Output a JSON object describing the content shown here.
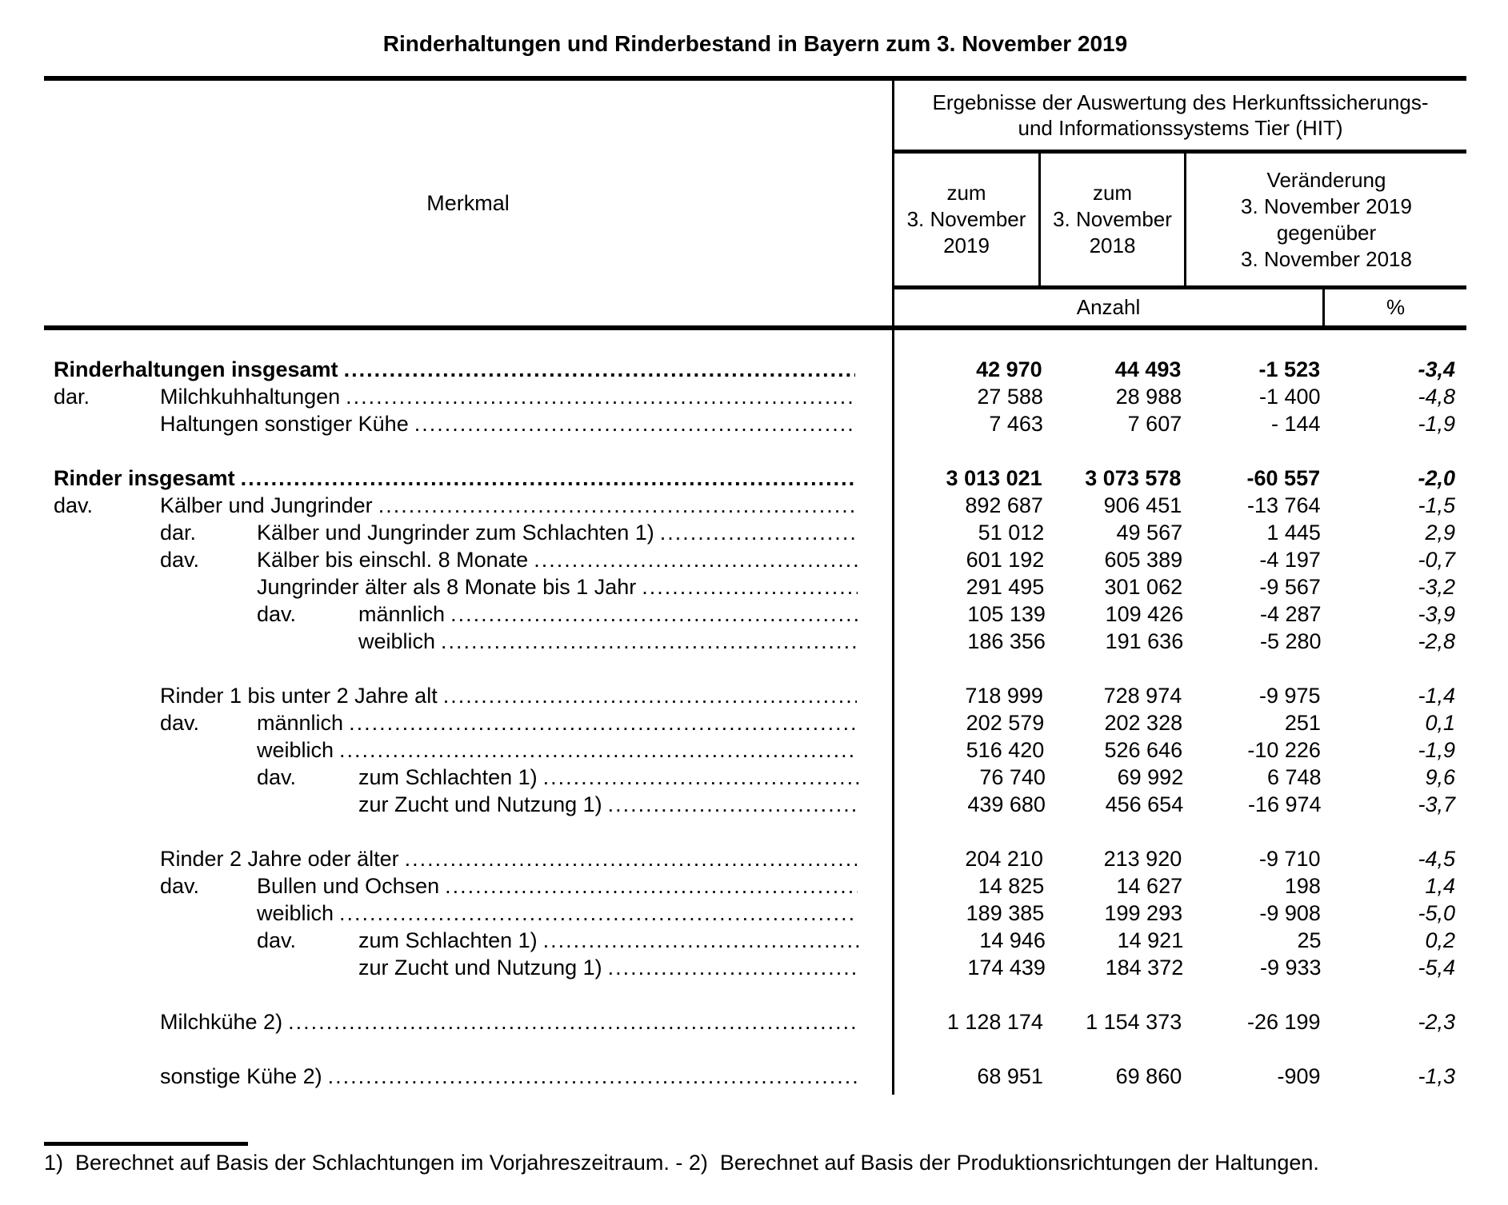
{
  "title": "Rinderhaltungen und Rinderbestand in Bayern zum 3. November 2019",
  "table": {
    "merkmal_label": "Merkmal",
    "hit_header": "Ergebnisse der Auswertung des Herkunftssicherungs-\nund Informationssystems Tier (HIT)",
    "col_2019": "zum\n3. November\n2019",
    "col_2018": "zum\n3. November\n2018",
    "col_change": "Veränderung\n3. November 2019\ngegenüber\n3. November 2018",
    "unit_anzahl": "Anzahl",
    "unit_percent": "%",
    "rows": [
      {
        "prefix": "",
        "prefix_level": 0,
        "label": "Rinderhaltungen insgesamt",
        "level": 0,
        "bold": true,
        "gap_before": false,
        "v2019": "42 970",
        "v2018": "44 493",
        "change": "-1 523",
        "percent": "-3,4"
      },
      {
        "prefix": "dar.",
        "prefix_level": 0,
        "label": "Milchkuhhaltungen",
        "level": 1,
        "bold": false,
        "gap_before": false,
        "v2019": "27 588",
        "v2018": "28 988",
        "change": "-1 400",
        "percent": "-4,8"
      },
      {
        "prefix": "",
        "prefix_level": 0,
        "label": "Haltungen sonstiger Kühe",
        "level": 1,
        "bold": false,
        "gap_before": false,
        "v2019": "7 463",
        "v2018": "7 607",
        "change": "- 144",
        "percent": "-1,9"
      },
      {
        "prefix": "",
        "prefix_level": 0,
        "label": "Rinder insgesamt",
        "level": 0,
        "bold": true,
        "gap_before": true,
        "v2019": "3 013 021",
        "v2018": "3 073 578",
        "change": "-60 557",
        "percent": "-2,0"
      },
      {
        "prefix": "dav.",
        "prefix_level": 0,
        "label": "Kälber und Jungrinder",
        "level": 1,
        "bold": false,
        "gap_before": false,
        "v2019": "892 687",
        "v2018": "906 451",
        "change": "-13 764",
        "percent": "-1,5"
      },
      {
        "prefix": "dar.",
        "prefix_level": 1,
        "label": "Kälber und Jungrinder zum Schlachten 1)",
        "level": 2,
        "bold": false,
        "gap_before": false,
        "v2019": "51 012",
        "v2018": "49 567",
        "change": "1 445",
        "percent": "2,9"
      },
      {
        "prefix": "dav.",
        "prefix_level": 1,
        "label": "Kälber bis einschl. 8 Monate",
        "level": 2,
        "bold": false,
        "gap_before": false,
        "v2019": "601 192",
        "v2018": "605 389",
        "change": "-4 197",
        "percent": "-0,7"
      },
      {
        "prefix": "",
        "prefix_level": 0,
        "label": "Jungrinder älter als 8 Monate bis 1 Jahr",
        "level": 2,
        "bold": false,
        "gap_before": false,
        "v2019": "291 495",
        "v2018": "301 062",
        "change": "-9 567",
        "percent": "-3,2"
      },
      {
        "prefix": "dav.",
        "prefix_level": 2,
        "label": "männlich",
        "level": 3,
        "bold": false,
        "gap_before": false,
        "v2019": "105 139",
        "v2018": "109 426",
        "change": "-4 287",
        "percent": "-3,9"
      },
      {
        "prefix": "",
        "prefix_level": 0,
        "label": "weiblich",
        "level": 3,
        "bold": false,
        "gap_before": false,
        "v2019": "186 356",
        "v2018": "191 636",
        "change": "-5 280",
        "percent": "-2,8"
      },
      {
        "prefix": "",
        "prefix_level": 0,
        "label": "Rinder 1 bis unter 2 Jahre alt",
        "level": 1,
        "bold": false,
        "gap_before": true,
        "v2019": "718 999",
        "v2018": "728 974",
        "change": "-9 975",
        "percent": "-1,4"
      },
      {
        "prefix": "dav.",
        "prefix_level": 1,
        "label": "männlich",
        "level": 2,
        "bold": false,
        "gap_before": false,
        "v2019": "202 579",
        "v2018": "202 328",
        "change": "251",
        "percent": "0,1"
      },
      {
        "prefix": "",
        "prefix_level": 0,
        "label": "weiblich",
        "level": 2,
        "bold": false,
        "gap_before": false,
        "v2019": "516 420",
        "v2018": "526 646",
        "change": "-10 226",
        "percent": "-1,9"
      },
      {
        "prefix": "dav.",
        "prefix_level": 2,
        "label": "zum Schlachten 1)",
        "level": 3,
        "bold": false,
        "gap_before": false,
        "v2019": "76 740",
        "v2018": "69 992",
        "change": "6 748",
        "percent": "9,6"
      },
      {
        "prefix": "",
        "prefix_level": 0,
        "label": "zur Zucht und Nutzung 1)",
        "level": 3,
        "bold": false,
        "gap_before": false,
        "v2019": "439 680",
        "v2018": "456 654",
        "change": "-16 974",
        "percent": "-3,7"
      },
      {
        "prefix": "",
        "prefix_level": 0,
        "label": "Rinder 2 Jahre oder älter",
        "level": 1,
        "bold": false,
        "gap_before": true,
        "v2019": "204 210",
        "v2018": "213 920",
        "change": "-9 710",
        "percent": "-4,5"
      },
      {
        "prefix": "dav.",
        "prefix_level": 1,
        "label": "Bullen und Ochsen",
        "level": 2,
        "bold": false,
        "gap_before": false,
        "v2019": "14 825",
        "v2018": "14 627",
        "change": "198",
        "percent": "1,4"
      },
      {
        "prefix": "",
        "prefix_level": 0,
        "label": "weiblich",
        "level": 2,
        "bold": false,
        "gap_before": false,
        "v2019": "189 385",
        "v2018": "199 293",
        "change": "-9 908",
        "percent": "-5,0"
      },
      {
        "prefix": "dav.",
        "prefix_level": 2,
        "label": "zum Schlachten 1)",
        "level": 3,
        "bold": false,
        "gap_before": false,
        "v2019": "14 946",
        "v2018": "14 921",
        "change": "25",
        "percent": "0,2"
      },
      {
        "prefix": "",
        "prefix_level": 0,
        "label": "zur Zucht und Nutzung 1)",
        "level": 3,
        "bold": false,
        "gap_before": false,
        "v2019": "174 439",
        "v2018": "184 372",
        "change": "-9 933",
        "percent": "-5,4"
      },
      {
        "prefix": "",
        "prefix_level": 0,
        "label": "Milchkühe 2)",
        "level": 1,
        "bold": false,
        "gap_before": true,
        "v2019": "1 128 174",
        "v2018": "1 154 373",
        "change": "-26 199",
        "percent": "-2,3"
      },
      {
        "prefix": "",
        "prefix_level": 0,
        "label": "sonstige Kühe 2)",
        "level": 1,
        "bold": false,
        "gap_before": true,
        "v2019": "68 951",
        "v2018": "69 860",
        "change": "-909",
        "percent": "-1,3"
      }
    ]
  },
  "footnote": "1)  Berechnet auf Basis der Schlachtungen im Vorjahreszeitraum. - 2)  Berechnet auf Basis der Produktionsrichtungen der Haltungen."
}
